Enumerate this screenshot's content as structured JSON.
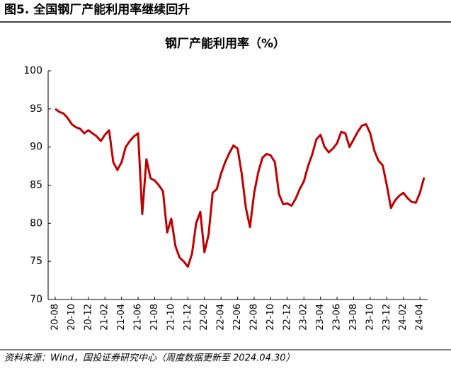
{
  "figure_title": "图5. 全国钢厂产能利用率继续回升",
  "source": "资料来源：Wind，国投证券研究中心（周度数据更新至 2024.04.30）",
  "chart_data": {
    "type": "line",
    "title": "钢厂产能利用率（%）",
    "categories": [
      "20-08",
      null,
      null,
      null,
      "20-10",
      null,
      null,
      null,
      "20-12",
      null,
      null,
      null,
      "21-02",
      null,
      null,
      null,
      "21-04",
      null,
      null,
      null,
      "21-06",
      null,
      null,
      null,
      "21-08",
      null,
      null,
      null,
      "21-10",
      null,
      null,
      null,
      "21-12",
      null,
      null,
      null,
      "22-02",
      null,
      null,
      null,
      "22-04",
      null,
      null,
      null,
      "22-06",
      null,
      null,
      null,
      "22-08",
      null,
      null,
      null,
      "22-10",
      null,
      null,
      null,
      "22-12",
      null,
      null,
      null,
      "23-02",
      null,
      null,
      null,
      "23-04",
      null,
      null,
      null,
      "23-06",
      null,
      null,
      null,
      "23-08",
      null,
      null,
      null,
      "23-10",
      null,
      null,
      null,
      "23-12",
      null,
      null,
      null,
      "24-02",
      null,
      null,
      null,
      "24-04",
      null
    ],
    "series": [
      {
        "name": "钢厂产能利用率",
        "color": "#c00000",
        "values": [
          95.0,
          94.6,
          94.4,
          93.8,
          93.0,
          92.6,
          92.4,
          91.8,
          92.2,
          91.8,
          91.4,
          90.8,
          91.6,
          92.2,
          88.0,
          87.0,
          88.0,
          90.0,
          90.8,
          91.4,
          91.8,
          81.2,
          88.4,
          85.9,
          85.6,
          85.0,
          84.2,
          78.8,
          80.6,
          77.0,
          75.5,
          75.0,
          74.3,
          76.0,
          80.0,
          81.5,
          76.2,
          78.5,
          84.0,
          84.5,
          86.5,
          88.0,
          89.2,
          90.2,
          89.8,
          86.5,
          82.0,
          79.5,
          84.0,
          86.7,
          88.6,
          89.1,
          88.9,
          88.0,
          83.8,
          82.5,
          82.6,
          82.3,
          83.2,
          84.5,
          85.5,
          87.5,
          89.0,
          91.0,
          91.6,
          90.0,
          89.3,
          89.8,
          90.5,
          92.0,
          91.8,
          90.0,
          91.0,
          92.0,
          92.8,
          93.0,
          91.8,
          89.5,
          88.2,
          87.6,
          85.0,
          82.0,
          83.0,
          83.6,
          84.0,
          83.3,
          82.8,
          82.7,
          84.0,
          86.0
        ]
      }
    ],
    "ylim": [
      70,
      100
    ],
    "yticks": [
      70,
      75,
      80,
      85,
      90,
      95,
      100
    ],
    "grid": false
  }
}
